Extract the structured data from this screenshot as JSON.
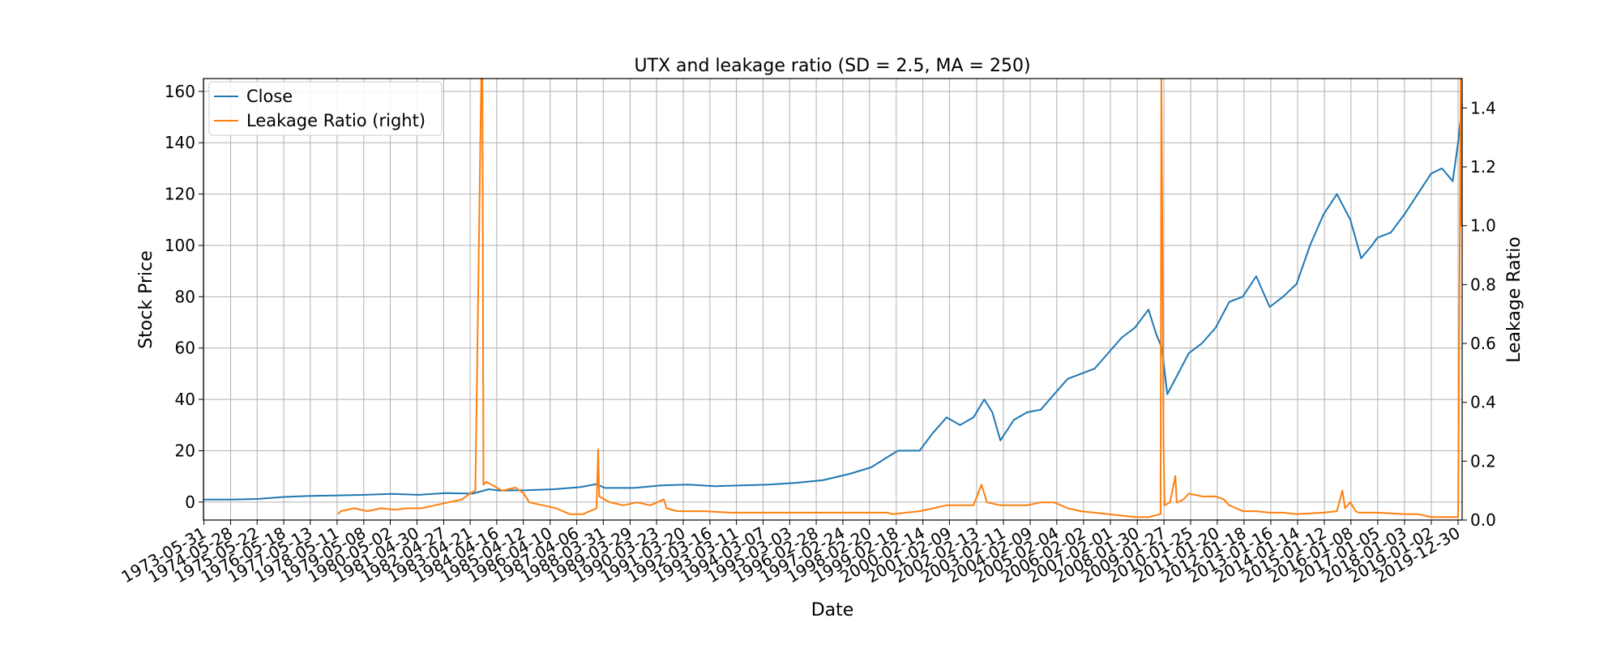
{
  "chart_data": {
    "type": "line",
    "title": "UTX and leakage ratio (SD = 2.5, MA = 250)",
    "xlabel": "Date",
    "ylabel": "Stock Price",
    "ylabel_right": "Leakage Ratio",
    "grid": true,
    "legend_position": "top-left",
    "ylim": [
      -7,
      165
    ],
    "ylim_right": [
      0.0,
      1.5
    ],
    "yticks": [
      0,
      20,
      40,
      60,
      80,
      100,
      120,
      140,
      160
    ],
    "yticks_right": [
      "0.0",
      "0.2",
      "0.4",
      "0.6",
      "0.8",
      "1.0",
      "1.2",
      "1.4"
    ],
    "x_tick_labels": [
      "1973-05-31",
      "1974-05-28",
      "1975-05-22",
      "1976-05-18",
      "1977-05-13",
      "1978-05-11",
      "1979-05-08",
      "1980-05-02",
      "1981-04-30",
      "1982-04-27",
      "1983-04-21",
      "1984-04-16",
      "1985-04-12",
      "1986-04-10",
      "1987-04-06",
      "1988-03-31",
      "1989-03-29",
      "1990-03-23",
      "1991-03-20",
      "1992-03-16",
      "1993-03-11",
      "1994-03-07",
      "1995-03-03",
      "1996-02-28",
      "1997-02-24",
      "1998-02-20",
      "1999-02-18",
      "2000-02-14",
      "2001-02-09",
      "2002-02-13",
      "2003-02-11",
      "2004-02-09",
      "2005-02-04",
      "2006-02-02",
      "2007-02-01",
      "2008-01-30",
      "2009-01-27",
      "2010-01-25",
      "2011-01-20",
      "2012-01-18",
      "2013-01-16",
      "2014-01-14",
      "2015-01-12",
      "2016-01-08",
      "2017-01-05",
      "2018-01-03",
      "2019-01-02",
      "2019-12-30"
    ],
    "series": [
      {
        "name": "Close",
        "axis": "left",
        "color": "#1f77b4",
        "x": [
          1973.4,
          1974.4,
          1975.4,
          1976.4,
          1977.4,
          1978.4,
          1979.4,
          1980.4,
          1981.4,
          1982.4,
          1983.4,
          1984.0,
          1984.4,
          1985.4,
          1986.4,
          1987.4,
          1988.0,
          1988.3,
          1989.4,
          1990.4,
          1991.4,
          1992.4,
          1993.4,
          1994.4,
          1995.4,
          1996.4,
          1997.4,
          1998.2,
          1998.8,
          1999.2,
          2000.0,
          2000.5,
          2001.0,
          2001.5,
          2002.0,
          2002.4,
          2002.7,
          2003.0,
          2003.5,
          2004.0,
          2004.5,
          2005.0,
          2005.5,
          2006.0,
          2006.5,
          2007.0,
          2007.5,
          2008.0,
          2008.5,
          2008.8,
          2009.0,
          2009.2,
          2009.6,
          2010.0,
          2010.5,
          2011.0,
          2011.5,
          2012.0,
          2012.5,
          2013.0,
          2013.5,
          2014.0,
          2014.5,
          2015.0,
          2015.5,
          2016.0,
          2016.4,
          2016.8,
          2017.0,
          2017.5,
          2018.0,
          2018.5,
          2019.0,
          2019.4,
          2019.8,
          2020.0,
          2020.15
        ],
        "y": [
          1.0,
          1.0,
          1.2,
          2.0,
          2.4,
          2.6,
          2.8,
          3.2,
          2.8,
          3.5,
          3.3,
          5.0,
          4.5,
          4.6,
          5.0,
          5.8,
          7.0,
          5.5,
          5.5,
          6.5,
          6.8,
          6.2,
          6.5,
          6.8,
          7.5,
          8.5,
          11.0,
          13.5,
          17.5,
          20.0,
          20.0,
          27.0,
          33.0,
          30.0,
          33.0,
          40.0,
          35.0,
          24.0,
          32.0,
          35.0,
          36.0,
          42.0,
          48.0,
          50.0,
          52.0,
          58.0,
          64.0,
          68.0,
          75.0,
          65.0,
          60.0,
          42.0,
          50.0,
          58.0,
          62.0,
          68.0,
          78.0,
          80.0,
          88.0,
          76.0,
          80.0,
          85.0,
          100.0,
          112.0,
          120.0,
          110.0,
          95.0,
          100.0,
          103.0,
          105.0,
          112.0,
          120.0,
          128.0,
          130.0,
          125.0,
          140.0,
          155.0
        ]
      },
      {
        "name": "Leakage Ratio (right)",
        "axis": "right",
        "color": "#ff7f0e",
        "x": [
          1978.4,
          1978.5,
          1979.0,
          1979.5,
          1980.0,
          1980.5,
          1981.0,
          1981.5,
          1982.0,
          1982.5,
          1983.0,
          1983.3,
          1983.5,
          1983.72,
          1983.76,
          1983.8,
          1983.9,
          1984.5,
          1985.0,
          1985.3,
          1985.5,
          1986.0,
          1986.5,
          1987.0,
          1987.5,
          1988.0,
          1988.06,
          1988.1,
          1988.5,
          1989.0,
          1989.5,
          1990.0,
          1990.5,
          1990.6,
          1991.0,
          1992.0,
          1993.0,
          1994.0,
          1995.0,
          1996.0,
          1997.0,
          1998.0,
          1998.8,
          1999.0,
          1999.5,
          2000.0,
          2000.5,
          2001.0,
          2001.5,
          2002.0,
          2002.3,
          2002.5,
          2003.0,
          2003.5,
          2004.0,
          2004.5,
          2005.0,
          2005.5,
          2006.0,
          2007.0,
          2008.0,
          2008.5,
          2008.95,
          2008.98,
          2009.02,
          2009.06,
          2009.1,
          2009.3,
          2009.5,
          2009.55,
          2009.6,
          2009.8,
          2010.0,
          2010.5,
          2011.0,
          2011.3,
          2011.5,
          2012.0,
          2012.5,
          2013.0,
          2013.5,
          2014.0,
          2015.0,
          2015.5,
          2015.7,
          2015.8,
          2016.0,
          2016.2,
          2016.3,
          2017.0,
          2018.0,
          2018.5,
          2019.0,
          2019.5,
          2020.0,
          2020.1,
          2020.12,
          2020.15
        ],
        "y": [
          0.02,
          0.03,
          0.04,
          0.03,
          0.04,
          0.035,
          0.04,
          0.04,
          0.05,
          0.06,
          0.07,
          0.09,
          0.1,
          1.5,
          1.5,
          0.12,
          0.13,
          0.1,
          0.11,
          0.09,
          0.06,
          0.05,
          0.04,
          0.02,
          0.02,
          0.04,
          0.24,
          0.08,
          0.06,
          0.05,
          0.06,
          0.05,
          0.07,
          0.04,
          0.03,
          0.03,
          0.025,
          0.025,
          0.025,
          0.025,
          0.025,
          0.025,
          0.025,
          0.02,
          0.025,
          0.03,
          0.04,
          0.05,
          0.05,
          0.05,
          0.12,
          0.06,
          0.05,
          0.05,
          0.05,
          0.06,
          0.06,
          0.04,
          0.03,
          0.02,
          0.01,
          0.01,
          0.02,
          1.5,
          0.9,
          0.25,
          0.05,
          0.06,
          0.15,
          0.06,
          0.06,
          0.07,
          0.09,
          0.08,
          0.08,
          0.07,
          0.05,
          0.03,
          0.03,
          0.025,
          0.025,
          0.02,
          0.025,
          0.03,
          0.1,
          0.04,
          0.06,
          0.03,
          0.025,
          0.025,
          0.02,
          0.02,
          0.01,
          0.01,
          0.01,
          1.5,
          1.0,
          1.0
        ]
      }
    ]
  }
}
